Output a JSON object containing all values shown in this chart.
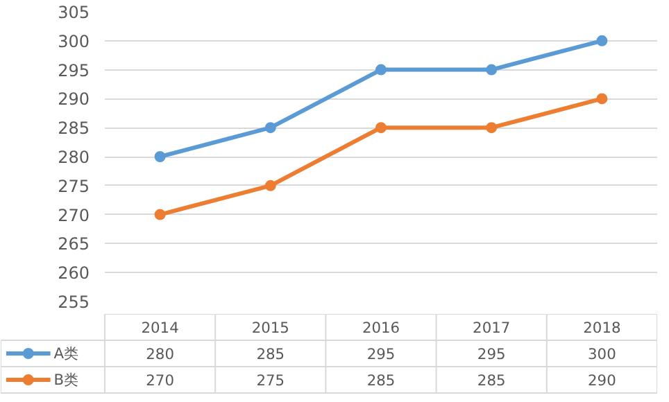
{
  "chart_data": {
    "type": "line",
    "categories": [
      "2014",
      "2015",
      "2016",
      "2017",
      "2018"
    ],
    "series": [
      {
        "name": "A类",
        "color": "#5b9bd5",
        "values": [
          280,
          285,
          295,
          295,
          300
        ]
      },
      {
        "name": "B类",
        "color": "#ed7d31",
        "values": [
          270,
          275,
          285,
          285,
          290
        ]
      }
    ],
    "ylim": [
      255,
      305
    ],
    "yticks": [
      255,
      260,
      265,
      270,
      275,
      280,
      285,
      290,
      295,
      300,
      305
    ],
    "grid": "y",
    "data_labels": true,
    "marker": "circle",
    "line_style": "solid",
    "legend": "bottom"
  }
}
